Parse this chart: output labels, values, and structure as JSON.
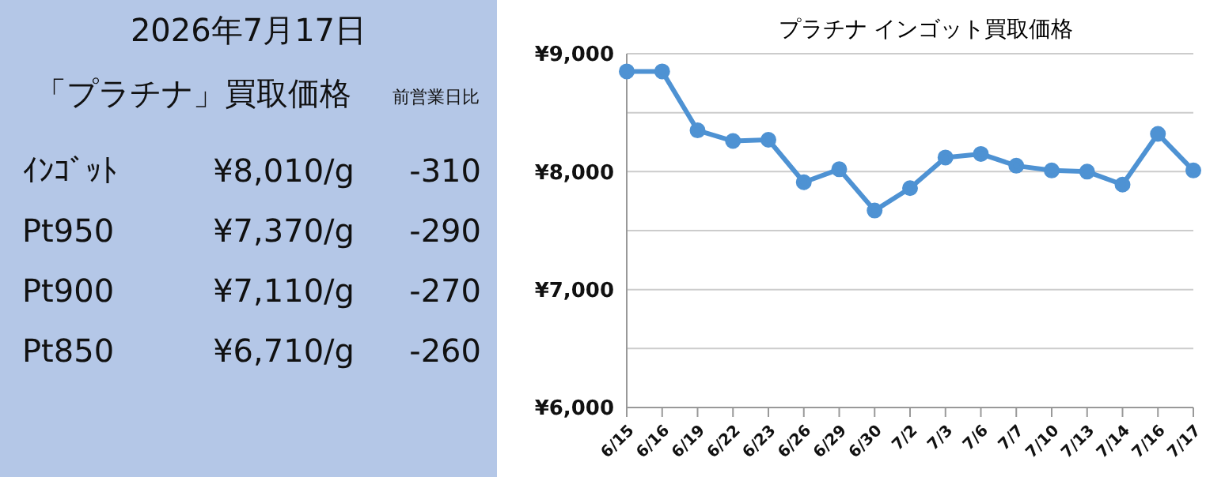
{
  "chart_data": [
    {
      "type": "other",
      "title": "2026年7月17日",
      "subtitle": "「プラチナ」買取価格",
      "categories": [
        "ｲﾝｺﾞｯﾄ",
        "Pt950",
        "Pt900",
        "Pt850"
      ],
      "series": [
        {
          "values": [
            8010,
            7370,
            7110,
            6710
          ],
          "value_labels": [
            "¥8,010/g",
            "¥7,370/g",
            "¥7,110/g",
            "¥6,710/g"
          ]
        },
        {
          "name": "前営業日比",
          "values": [
            -310,
            -290,
            -270,
            -260
          ],
          "value_labels": [
            "-310",
            "-290",
            "-270",
            "-260"
          ]
        }
      ]
    },
    {
      "type": "line",
      "title": "プラチナ インゴット買取価格",
      "categories": [
        "6/15",
        "6/16",
        "6/19",
        "6/22",
        "6/23",
        "6/26",
        "6/29",
        "6/30",
        "7/2",
        "7/3",
        "7/6",
        "7/7",
        "7/10",
        "7/13",
        "7/14",
        "7/16",
        "7/17"
      ],
      "series": [
        {
          "color": "#4e92d3",
          "values": [
            8850,
            8850,
            8350,
            8260,
            8270,
            7910,
            8020,
            7670,
            7860,
            8120,
            8150,
            8050,
            8010,
            8000,
            7890,
            8320,
            8010
          ]
        }
      ],
      "ylim": [
        6000,
        9000
      ],
      "yticks": [
        {
          "value": 6000,
          "label": "¥6,000"
        },
        {
          "value": 6500,
          "label": null
        },
        {
          "value": 7000,
          "label": "¥7,000"
        },
        {
          "value": 7500,
          "label": null
        },
        {
          "value": 8000,
          "label": "¥8,000"
        },
        {
          "value": 8500,
          "label": null
        },
        {
          "value": 9000,
          "label": "¥9,000"
        }
      ],
      "grid": "y",
      "marker": "circle",
      "line_style": "solid",
      "legend": false
    }
  ]
}
